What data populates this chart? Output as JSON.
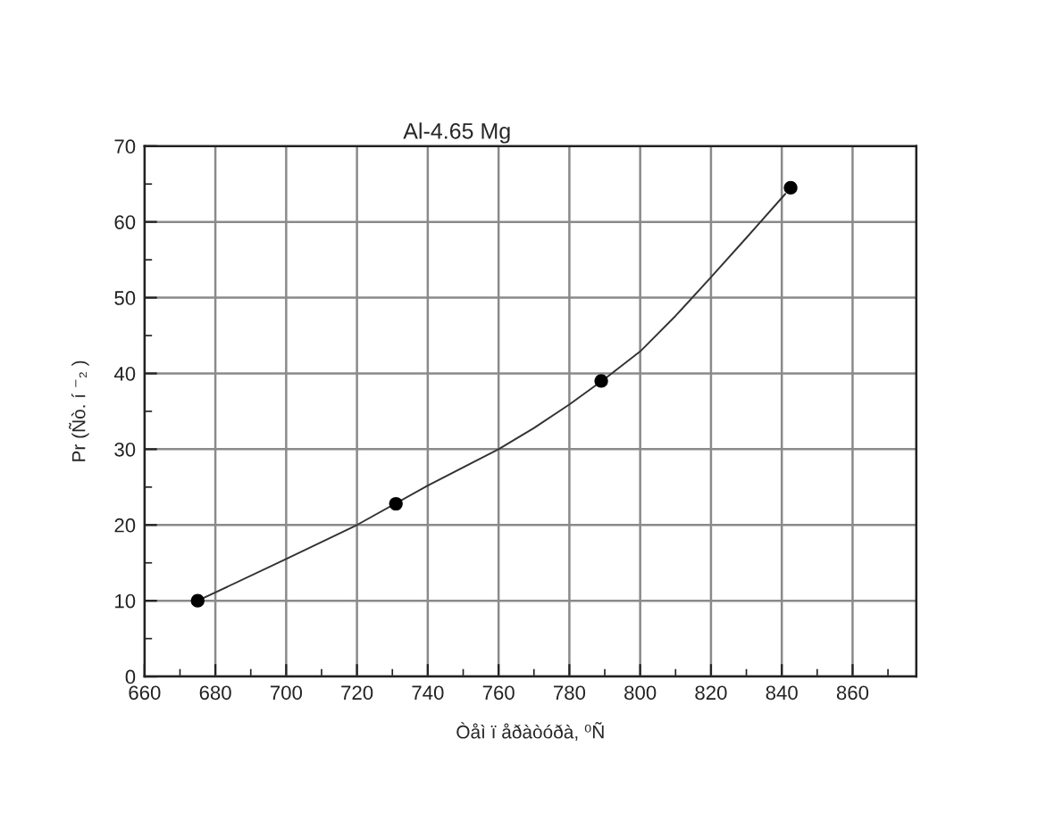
{
  "chart_data": {
    "type": "scatter",
    "title": "Al-4.65 Mg",
    "xlabel": "Òåì ï åðàòóðà, ⁰Ñ",
    "ylabel": "Pr (Ñò. í ⁻₂ )",
    "xlim": [
      660,
      878
    ],
    "xticks": [
      660,
      {
        "value": 670,
        "label": null
      },
      680,
      {
        "value": 690,
        "label": null
      },
      700,
      {
        "value": 710,
        "label": null
      },
      720,
      {
        "value": 730,
        "label": null
      },
      740,
      {
        "value": 750,
        "label": null
      },
      760,
      {
        "value": 770,
        "label": null
      },
      780,
      {
        "value": 790,
        "label": null
      },
      800,
      {
        "value": 810,
        "label": null
      },
      820,
      {
        "value": 830,
        "label": null
      },
      840,
      {
        "value": 850,
        "label": null
      },
      860,
      {
        "value": 870,
        "label": null
      }
    ],
    "ylim": [
      0,
      70
    ],
    "yticks": [
      0,
      {
        "value": 5,
        "label": null
      },
      10,
      {
        "value": 15,
        "label": null
      },
      20,
      {
        "value": 25,
        "label": null
      },
      30,
      {
        "value": 35,
        "label": null
      },
      40,
      {
        "value": 45,
        "label": null
      },
      50,
      {
        "value": 55,
        "label": null
      },
      60,
      {
        "value": 65,
        "label": null
      },
      70
    ],
    "grid": true,
    "series": [
      {
        "type": "line",
        "color": "#333333",
        "marker": "none",
        "line_style": "solid",
        "x": [
          675,
          700,
          720,
          740,
          760,
          770,
          780,
          790,
          800,
          810,
          820,
          830,
          841
        ],
        "values": [
          10,
          15.5,
          20,
          25.2,
          30,
          32.8,
          35.9,
          39.3,
          42.9,
          47.6,
          52.7,
          57.9,
          63.7
        ]
      },
      {
        "color": "#000000",
        "marker": "circle",
        "x": [
          675,
          731,
          789,
          842.5
        ],
        "values": [
          10,
          22.8,
          39,
          64.5
        ]
      }
    ]
  }
}
